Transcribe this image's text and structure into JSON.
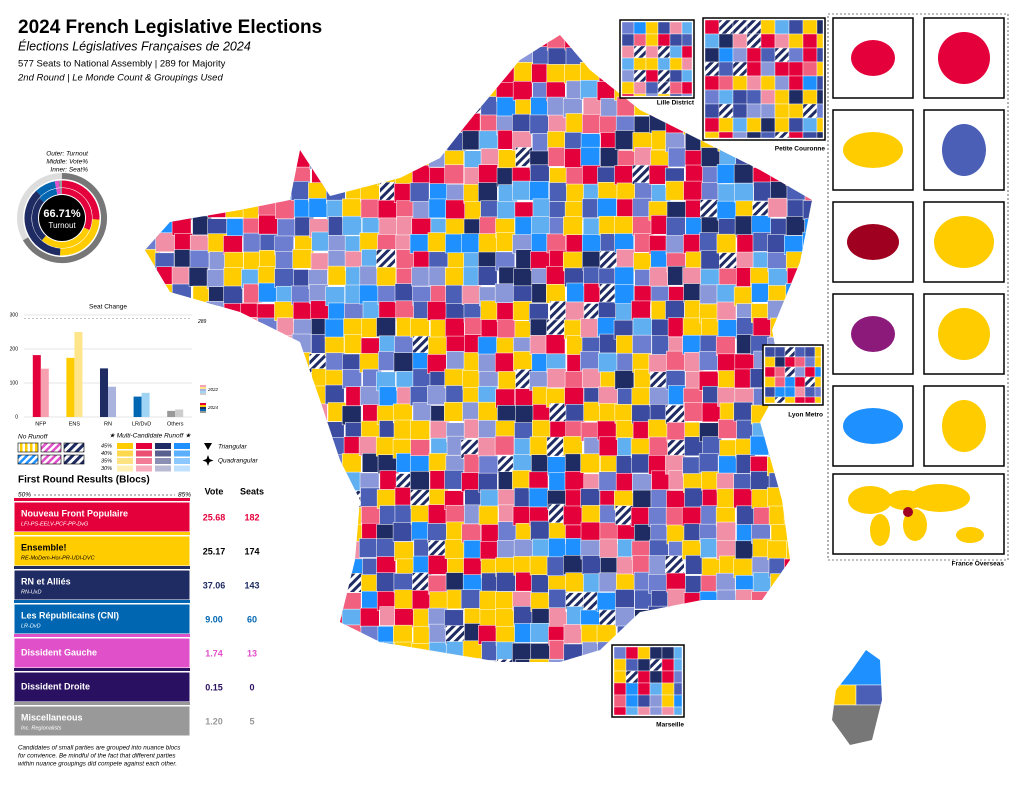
{
  "header": {
    "title": "2024 French Legislative Elections",
    "subtitle": "Élections Législatives Françaises de 2024",
    "seats_line": "577 Seats to National Assembly | 289 for Majority",
    "round_line": "2nd Round | Le Monde Count & Groupings Used"
  },
  "turnout": {
    "labels": [
      "Outer: Turnout",
      "Middle: Vote%",
      "Inner: Seat%"
    ],
    "value": 66.71,
    "label": "66.71%",
    "caption": "Turnout"
  },
  "seat_change": {
    "type": "bar",
    "title": "Seat Change",
    "categories": [
      "NFP",
      "ENS",
      "RN",
      "LR/DvD",
      "Others"
    ],
    "ylim": [
      0,
      300
    ],
    "yticks": [
      0,
      100,
      200,
      300
    ],
    "majority": 289,
    "series": [
      {
        "name": "2022",
        "values": [
          142,
          250,
          89,
          71,
          22
        ],
        "colors": [
          "#f7a1b0",
          "#ffe58a",
          "#a9b3dd",
          "#9fd4f5",
          "#cccccc"
        ]
      },
      {
        "name": "2024",
        "values": [
          182,
          174,
          143,
          60,
          18
        ],
        "colors": [
          "#e4003b",
          "#ffcc00",
          "#1f2b63",
          "#0066b2",
          "#999999"
        ]
      }
    ]
  },
  "legend": {
    "no_runoff": "No Runoff",
    "multi_runoff": "★ Multi-Candidate Runoff ★",
    "levels": [
      "45%",
      "40%",
      "35%",
      "30%"
    ],
    "triangular": "Triangular",
    "quadrangular": "Quadrangular"
  },
  "results": {
    "title": "First Round Results (Blocs)",
    "scale_min": "50%",
    "scale_max": "85%",
    "vote_head": "Vote",
    "seats_head": "Seats",
    "rows": [
      {
        "name": "Nouveau Front Populaire",
        "parties": "LFI-PS-EELV-PCF-PP-DvG",
        "vote": 25.68,
        "seats": 182,
        "color": "#e4003b",
        "text_color": "#ffffff"
      },
      {
        "name": "Ensemble!",
        "parties": "RE-MoDem-Hor-PR-UDI-DVC",
        "vote": 25.17,
        "seats": 174,
        "color": "#ffcc00",
        "text_color": "#000000"
      },
      {
        "name": "RN et Alliés",
        "parties": "RN-UxD",
        "vote": 37.06,
        "seats": 143,
        "color": "#1f2b63",
        "text_color": "#ffffff"
      },
      {
        "name": "Les Républicains (CNI)",
        "parties": "LR-DvD",
        "vote": 9,
        "vote_label": "9.00",
        "seats": 60,
        "color": "#0066b2",
        "text_color": "#ffffff"
      },
      {
        "name": "Dissident Gauche",
        "vote": 1.74,
        "seats": 13,
        "color": "#e050c8",
        "text_color": "#ffffff"
      },
      {
        "name": "Dissident Droite",
        "vote": 0.15,
        "seats": 0,
        "color": "#2a1060",
        "text_color": "#ffffff"
      },
      {
        "name": "Miscellaneous",
        "parties": "Inc. Regionalists",
        "vote": 1.2,
        "vote_label": "1.20",
        "seats": 5,
        "color": "#999999",
        "text_color": "#ffffff"
      }
    ]
  },
  "map": {
    "insets": [
      "Lille District",
      "Petite Couronne",
      "Lyon Metro",
      "Marseille",
      "France Overseas"
    ]
  },
  "footnote": [
    "Candidates of small parties are grouped into nuance blocs",
    "for convience. Be mindful of the fact that different parties",
    "within nuance groupings did compete against each other."
  ]
}
